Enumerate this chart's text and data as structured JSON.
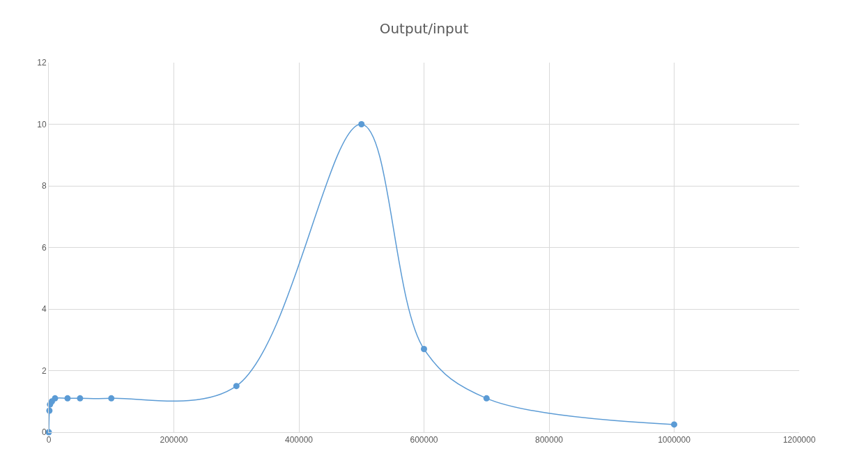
{
  "chart_data": {
    "type": "line",
    "title": "Output/input",
    "x": [
      0,
      1000,
      2000,
      5000,
      10000,
      30000,
      50000,
      100000,
      300000,
      500000,
      600000,
      700000,
      1000000
    ],
    "series": [
      {
        "color": "#5b9bd5",
        "values": [
          0,
          0.7,
          0.9,
          1.0,
          1.1,
          1.1,
          1.1,
          1.1,
          1.5,
          10,
          2.7,
          1.1,
          0.25
        ]
      }
    ],
    "xlim": [
      0,
      1200000
    ],
    "xticks": [
      0,
      200000,
      400000,
      600000,
      800000,
      1000000,
      1200000
    ],
    "ylim": [
      0,
      12
    ],
    "yticks": [
      0,
      2,
      4,
      6,
      8,
      10,
      12
    ],
    "grid": true,
    "legend": false,
    "marker": "circle",
    "line_style": "solid"
  }
}
